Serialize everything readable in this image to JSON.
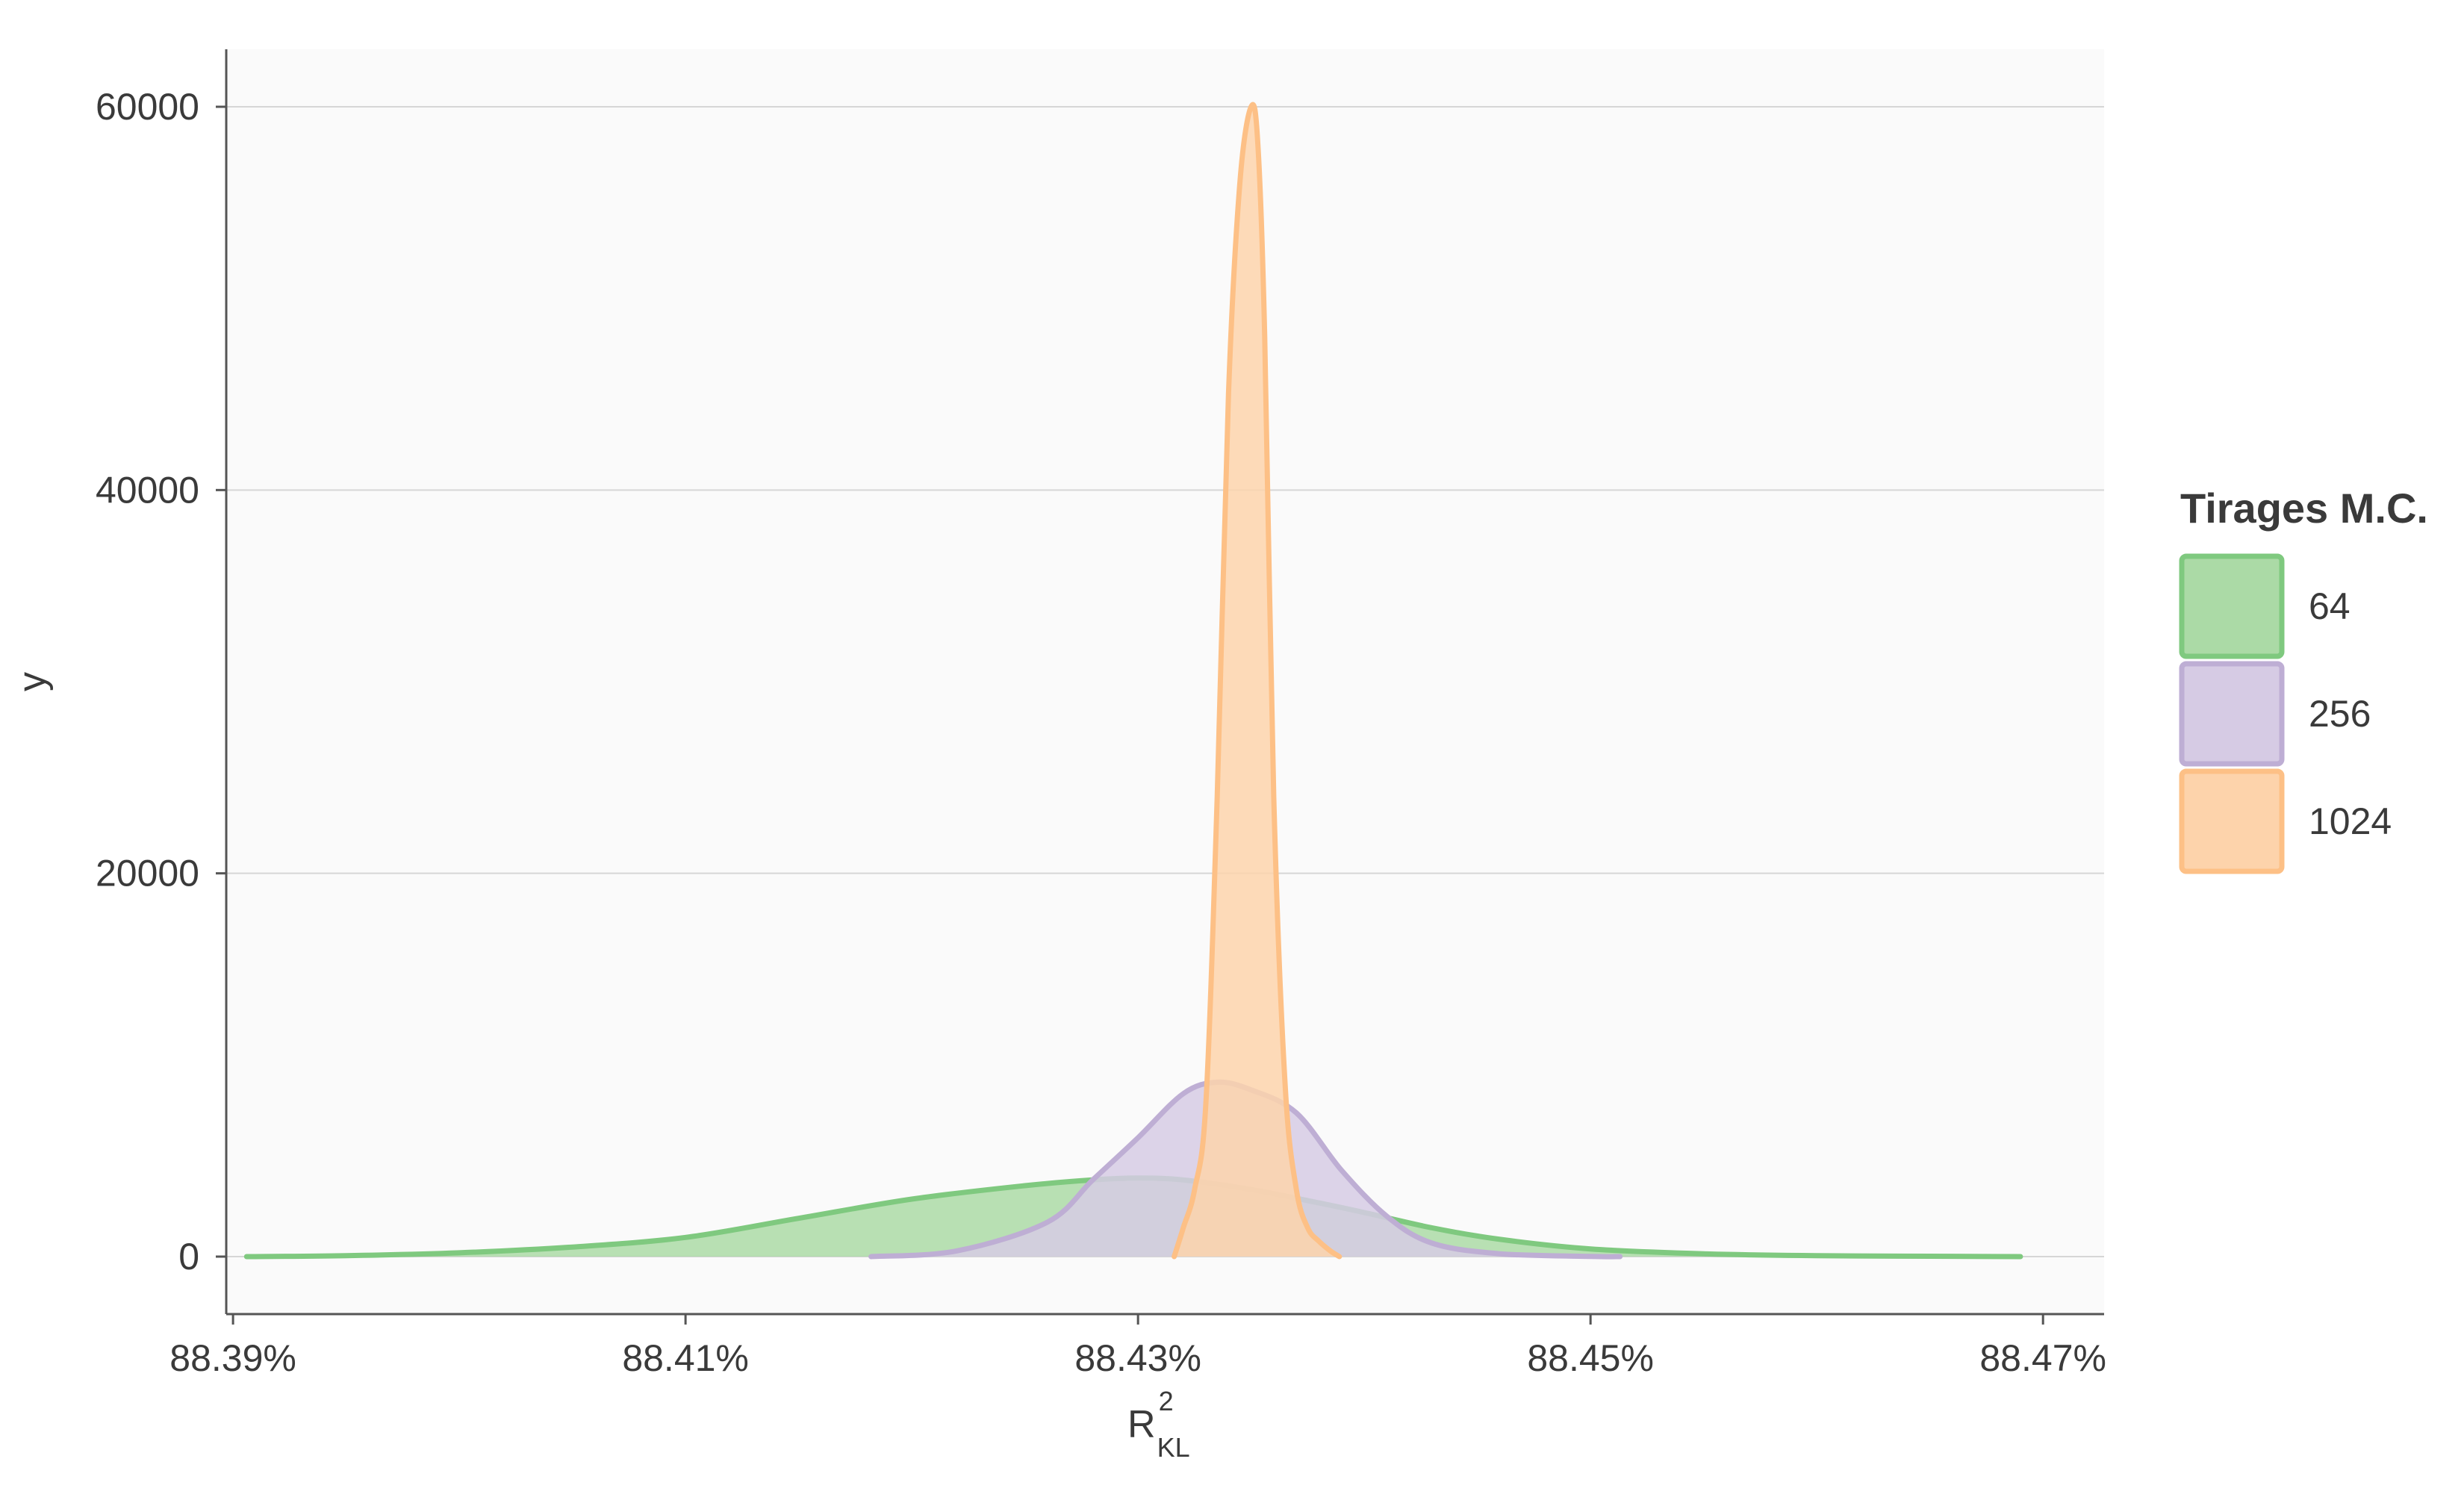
{
  "chart_data": {
    "type": "area",
    "title": "",
    "xlabel": {
      "base": "R",
      "sup": "2",
      "sub": "KL"
    },
    "ylabel": "y",
    "xlim": [
      88.3897,
      88.4727
    ],
    "ylim": [
      -3000,
      63000
    ],
    "x_ticks": [
      88.39,
      88.41,
      88.43,
      88.45,
      88.47
    ],
    "x_tick_labels": [
      "88.39%",
      "88.41%",
      "88.43%",
      "88.45%",
      "88.47%"
    ],
    "y_ticks": [
      0,
      20000,
      40000,
      60000
    ],
    "y_tick_labels": [
      "0",
      "20000",
      "40000",
      "60000"
    ],
    "grid": "horizontal",
    "legend": {
      "title": "Tirages M.C.",
      "placement": "right"
    },
    "series": [
      {
        "name": "64",
        "color": "#7fc97f",
        "fill": "#abdaa6",
        "x": [
          88.3906,
          88.395,
          88.4,
          88.405,
          88.41,
          88.415,
          88.42,
          88.425,
          88.428,
          88.43,
          88.432,
          88.435,
          88.438,
          88.44,
          88.443,
          88.446,
          88.45,
          88.455,
          88.46,
          88.465,
          88.469
        ],
        "y": [
          0,
          50,
          200,
          500,
          1000,
          2000,
          3000,
          3700,
          4000,
          4100,
          4000,
          3500,
          2800,
          2300,
          1500,
          900,
          400,
          150,
          50,
          20,
          0
        ]
      },
      {
        "name": "256",
        "color": "#beaed4",
        "fill": "#d6cbe4",
        "x": [
          88.4182,
          88.422,
          88.426,
          88.428,
          88.43,
          88.432,
          88.4335,
          88.435,
          88.437,
          88.439,
          88.441,
          88.443,
          88.446,
          88.45,
          88.4513
        ],
        "y": [
          0,
          300,
          1800,
          4000,
          6200,
          8500,
          9100,
          8700,
          7500,
          4500,
          2100,
          700,
          150,
          10,
          0
        ]
      },
      {
        "name": "1024",
        "color": "#fdc086",
        "fill": "#fdd3ab",
        "x": [
          88.4316,
          88.432,
          88.4325,
          88.433,
          88.4335,
          88.434,
          88.4345,
          88.435,
          88.4353,
          88.4356,
          88.436,
          88.4365,
          88.437,
          88.4375,
          88.438,
          88.4385,
          88.4389
        ],
        "y": [
          0,
          1500,
          3500,
          8000,
          24000,
          45000,
          56000,
          60000,
          58000,
          48000,
          24000,
          9000,
          3500,
          1500,
          800,
          300,
          0
        ]
      }
    ]
  }
}
